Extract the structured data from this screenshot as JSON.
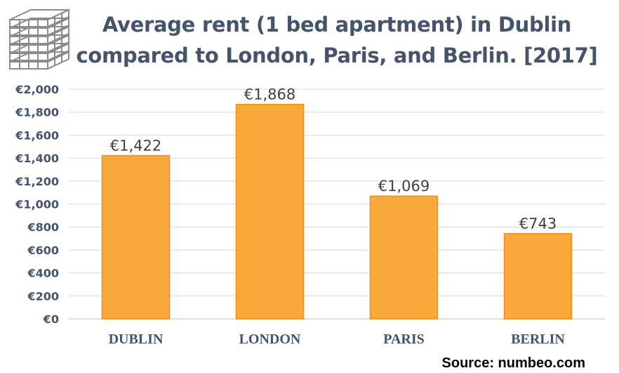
{
  "colors": {
    "bar_fill": "#f9a93a",
    "bar_stroke": "#f08c1e",
    "title": "#44546a",
    "axis_text": "#44546a",
    "grid": "#d9d9d9"
  },
  "logo": {
    "icon": "pallet-stack-icon"
  },
  "title_lines": [
    "Average rent (1 bed apartment) in Dublin",
    "compared to London, Paris, and Berlin. [2017]"
  ],
  "source": "Source: numbeo.com",
  "chart_data": {
    "type": "bar",
    "title": "Average rent (1 bed apartment) in Dublin compared to London, Paris, and Berlin. [2017]",
    "categories": [
      "DUBLIN",
      "LONDON",
      "PARIS",
      "BERLIN"
    ],
    "values": [
      1422,
      1868,
      1069,
      743
    ],
    "data_labels": [
      "€1,422",
      "€1,868",
      "€1,069",
      "€743"
    ],
    "ylim": [
      0,
      2000
    ],
    "y_ticks": [
      0,
      200,
      400,
      600,
      800,
      1000,
      1200,
      1400,
      1600,
      1800,
      2000
    ],
    "y_tick_labels": [
      "€0",
      "€200",
      "€400",
      "€600",
      "€800",
      "€1,000",
      "€1,200",
      "€1,400",
      "€1,600",
      "€1,800",
      "€2,000"
    ],
    "xlabel": "",
    "ylabel": "",
    "grid": true,
    "legend": "none"
  }
}
